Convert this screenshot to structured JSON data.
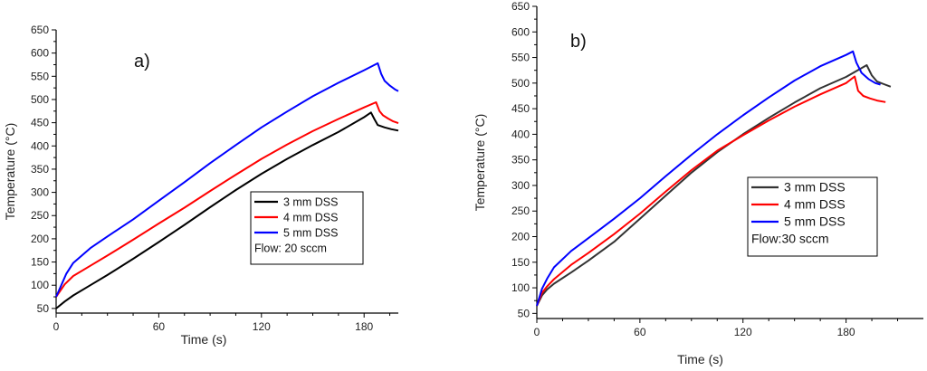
{
  "chart_data": [
    {
      "type": "line",
      "panel_label": "a)",
      "xlabel": "Time (s)",
      "ylabel": "Temperature (°C)",
      "xlim": [
        0,
        200
      ],
      "ylim": [
        40,
        650
      ],
      "xticks": [
        0,
        60,
        120,
        180
      ],
      "yticks": [
        50,
        100,
        150,
        200,
        250,
        300,
        350,
        400,
        450,
        500,
        550,
        600,
        650
      ],
      "legend_location": "center-right",
      "legend_note": "Flow: 20 sccm",
      "series": [
        {
          "name": "3 mm DSS",
          "color": "#000000",
          "x": [
            0,
            5,
            10,
            20,
            30,
            45,
            60,
            75,
            90,
            105,
            120,
            135,
            150,
            165,
            180,
            184,
            186,
            188,
            192,
            196,
            200
          ],
          "y": [
            50,
            65,
            78,
            100,
            122,
            157,
            193,
            230,
            268,
            305,
            340,
            372,
            402,
            430,
            462,
            472,
            458,
            445,
            440,
            436,
            433
          ]
        },
        {
          "name": "4 mm DSS",
          "color": "#ff0000",
          "x": [
            0,
            5,
            10,
            20,
            30,
            45,
            60,
            75,
            90,
            105,
            120,
            135,
            150,
            165,
            180,
            187,
            189,
            191,
            194,
            197,
            200
          ],
          "y": [
            75,
            102,
            120,
            142,
            164,
            198,
            233,
            267,
            303,
            338,
            372,
            403,
            432,
            458,
            483,
            494,
            475,
            466,
            459,
            453,
            449
          ]
        },
        {
          "name": "5 mm DSS",
          "color": "#0000ff",
          "x": [
            0,
            3,
            6,
            10,
            20,
            30,
            45,
            60,
            75,
            90,
            105,
            120,
            135,
            150,
            165,
            180,
            188,
            190,
            192,
            195,
            198,
            200
          ],
          "y": [
            75,
            100,
            125,
            148,
            180,
            205,
            242,
            282,
            322,
            363,
            402,
            440,
            474,
            507,
            536,
            563,
            578,
            555,
            540,
            530,
            522,
            518
          ]
        }
      ]
    },
    {
      "type": "line",
      "panel_label": "b)",
      "xlabel": "Time (s)",
      "ylabel": "Temperature (°C)",
      "xlim": [
        0,
        225
      ],
      "ylim": [
        40,
        650
      ],
      "xticks": [
        0,
        60,
        120,
        180
      ],
      "yticks": [
        50,
        100,
        150,
        200,
        250,
        300,
        350,
        400,
        450,
        500,
        550,
        600,
        650
      ],
      "legend_location": "center-right",
      "legend_note": "Flow:30 sccm",
      "series": [
        {
          "name": "3 mm DSS",
          "color": "#333333",
          "x": [
            0,
            3,
            6,
            10,
            20,
            30,
            45,
            60,
            75,
            90,
            105,
            120,
            135,
            150,
            165,
            180,
            192,
            195,
            198,
            202,
            206
          ],
          "y": [
            65,
            85,
            97,
            108,
            130,
            153,
            190,
            235,
            280,
            325,
            365,
            400,
            432,
            462,
            490,
            512,
            535,
            515,
            503,
            498,
            493
          ]
        },
        {
          "name": "4 mm DSS",
          "color": "#ff0000",
          "x": [
            0,
            3,
            6,
            10,
            20,
            30,
            45,
            60,
            75,
            90,
            105,
            120,
            135,
            150,
            165,
            180,
            185,
            187,
            190,
            194,
            198,
            203
          ],
          "y": [
            65,
            90,
            103,
            117,
            145,
            168,
            205,
            245,
            288,
            330,
            368,
            398,
            427,
            454,
            478,
            500,
            513,
            485,
            475,
            470,
            466,
            463
          ]
        },
        {
          "name": "5 mm  DSS",
          "color": "#0000ff",
          "x": [
            0,
            3,
            6,
            10,
            20,
            30,
            45,
            60,
            75,
            90,
            105,
            120,
            135,
            150,
            165,
            180,
            184,
            186,
            189,
            193,
            197,
            200
          ],
          "y": [
            65,
            98,
            118,
            140,
            172,
            197,
            235,
            275,
            318,
            360,
            400,
            437,
            472,
            505,
            533,
            555,
            562,
            540,
            520,
            508,
            500,
            497
          ]
        }
      ]
    }
  ]
}
